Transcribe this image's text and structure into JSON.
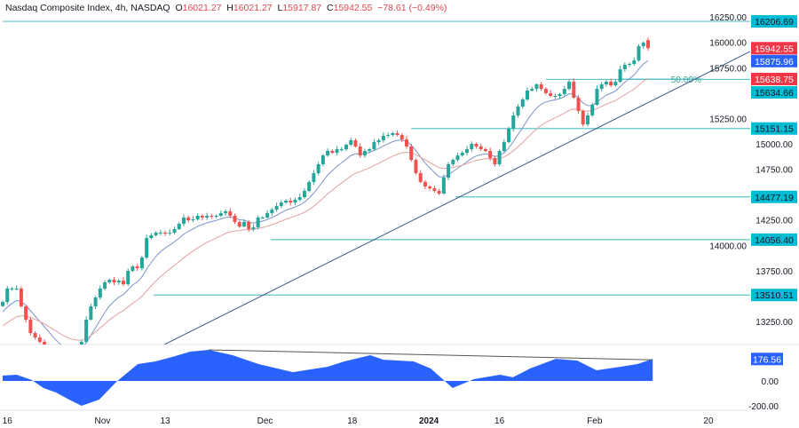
{
  "header": {
    "symbol": "Nasdaq Composite Index, 4h, NASDAQ",
    "open_label": "O",
    "open": "16021.27",
    "high_label": "H",
    "high": "16021.27",
    "low_label": "L",
    "low": "15917.87",
    "close_label": "C",
    "close": "15942.55",
    "change": "−78.61 (−0.49%)"
  },
  "colors": {
    "up": "#26a69a",
    "down": "#ef5350",
    "fast_ma": "#7b93c9",
    "slow_ma": "#e4a0a0",
    "level_line": "#5fc4c9",
    "level_tag": "#00bcd4",
    "trendline": "#3d5a8a",
    "oscillator": "#2962ff",
    "price_tag": "#f23645",
    "ma_tag": "#2962ff"
  },
  "chart_data": {
    "type": "candlestick",
    "title": "Nasdaq Composite Index, 4h, NASDAQ",
    "ylim": [
      12980,
      16300
    ],
    "y_ticks": [
      "16250.00",
      "16000.00",
      "15750.00",
      "15250.00",
      "15000.00",
      "14750.00",
      "14250.00",
      "14000.00",
      "13750.00",
      "13250.00"
    ],
    "y_tick_values": [
      16250,
      16000,
      15750,
      15250,
      15000,
      14750,
      14250,
      14000,
      13750,
      13250
    ],
    "x_ticks": [
      {
        "label": "16",
        "bar": 1,
        "bold": false
      },
      {
        "label": "Nov",
        "bar": 21.5,
        "bold": false
      },
      {
        "label": "13",
        "bar": 35,
        "bold": false
      },
      {
        "label": "Dec",
        "bar": 56.5,
        "bold": false
      },
      {
        "label": "18",
        "bar": 75.3,
        "bold": false
      },
      {
        "label": "2024",
        "bar": 91.8,
        "bold": true
      },
      {
        "label": "16",
        "bar": 107,
        "bold": false
      },
      {
        "label": "Feb",
        "bar": 127.5,
        "bold": false
      },
      {
        "label": "20",
        "bar": 152,
        "bold": false
      }
    ],
    "last_open": 16021.27,
    "closes": [
      13442,
      13574,
      13574,
      13574,
      13399,
      13268,
      13136,
      13092,
      13049,
      12980,
      12930,
      12880,
      12850,
      12840,
      12870,
      12920,
      12980,
      13049,
      13268,
      13399,
      13486,
      13574,
      13635,
      13661,
      13635,
      13652,
      13617,
      13749,
      13792,
      13775,
      13880,
      14072,
      14099,
      14125,
      14125,
      14116,
      14125,
      14160,
      14212,
      14274,
      14247,
      14256,
      14291,
      14274,
      14291,
      14282,
      14291,
      14317,
      14335,
      14291,
      14230,
      14186,
      14230,
      14160,
      14177,
      14274,
      14274,
      14317,
      14352,
      14387,
      14422,
      14440,
      14422,
      14449,
      14475,
      14536,
      14624,
      14711,
      14799,
      14886,
      14930,
      14912,
      14947,
      14947,
      14991,
      15035,
      14974,
      14886,
      14930,
      14947,
      15017,
      15035,
      15079,
      15087,
      15105,
      15087,
      15044,
      14974,
      14842,
      14711,
      14624,
      14580,
      14562,
      14536,
      14510,
      14667,
      14799,
      14842,
      14886,
      14912,
      14947,
      15000,
      14974,
      14947,
      14930,
      14860,
      14799,
      14930,
      15017,
      15149,
      15280,
      15367,
      15437,
      15525,
      15542,
      15586,
      15542,
      15499,
      15472,
      15472,
      15490,
      15542,
      15612,
      15455,
      15324,
      15192,
      15280,
      15385,
      15542,
      15586,
      15612,
      15577,
      15612,
      15735,
      15779,
      15787,
      15822,
      15962,
      15997,
      15942.55
    ],
    "moving_averages": [
      {
        "label": "15875.96",
        "color_key": "fast_ma",
        "period": 9
      },
      {
        "label": "15638.75",
        "color_key": "slow_ma",
        "period": 21
      }
    ],
    "levels": [
      {
        "label": "16206.69",
        "value": 16206.69,
        "from_bar": 0
      },
      {
        "label": "15634.66",
        "value": 15634.66,
        "from_bar": 117
      },
      {
        "label": "15151.15",
        "value": 15151.15,
        "from_bar": 88
      },
      {
        "label": "14477.19",
        "value": 14477.19,
        "from_bar": 97.5
      },
      {
        "label": "14056.40",
        "value": 14056.4,
        "from_bar": 57.7
      },
      {
        "label": "13510.51",
        "value": 13510.51,
        "from_bar": 32.5
      }
    ],
    "fib": {
      "label": "50.00%",
      "value": 15638.75,
      "from_bar": 133,
      "to_bar": 151
    },
    "trendline": {
      "from": {
        "bar": 34.8,
        "price": 13022
      },
      "to": {
        "bar": 161,
        "price": 15910
      }
    },
    "oscillator": {
      "ylim": [
        -230,
        290
      ],
      "y_ticks": [
        "0.00",
        "-200.00"
      ],
      "y_tick_values": [
        0,
        -200
      ],
      "last_label": "176.56",
      "points": [
        [
          0,
          43
        ],
        [
          3,
          50
        ],
        [
          6.3,
          7
        ],
        [
          8.8,
          -57
        ],
        [
          11.5,
          -93
        ],
        [
          14.3,
          -150
        ],
        [
          17,
          -200
        ],
        [
          20.8,
          -150
        ],
        [
          24.5,
          -7
        ],
        [
          29.1,
          136
        ],
        [
          32.9,
          157
        ],
        [
          36.5,
          193
        ],
        [
          40.4,
          236
        ],
        [
          44.4,
          250
        ],
        [
          49.5,
          207
        ],
        [
          55.1,
          136
        ],
        [
          62.5,
          71
        ],
        [
          70,
          114
        ],
        [
          73.6,
          157
        ],
        [
          79.2,
          207
        ],
        [
          82,
          171
        ],
        [
          88.5,
          157
        ],
        [
          92.2,
          100
        ],
        [
          96.9,
          -57
        ],
        [
          101.5,
          14
        ],
        [
          107.1,
          50
        ],
        [
          109.9,
          29
        ],
        [
          113.6,
          100
        ],
        [
          119.1,
          178
        ],
        [
          123.7,
          164
        ],
        [
          127.9,
          86
        ],
        [
          133.1,
          114
        ],
        [
          136.7,
          136
        ],
        [
          140,
          176.56
        ]
      ],
      "trendline": {
        "from": {
          "bar": 44.4,
          "value": 250
        },
        "to": {
          "bar": 140,
          "value": 170
        }
      }
    }
  }
}
